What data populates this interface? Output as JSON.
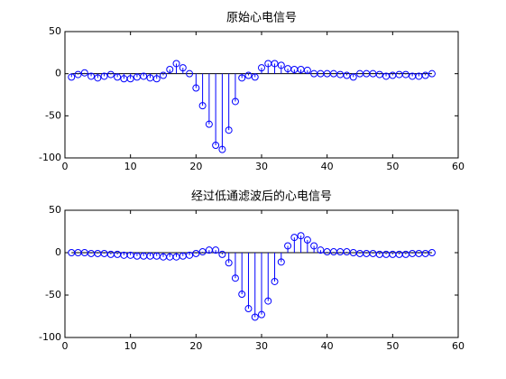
{
  "chart_data": [
    {
      "type": "stem",
      "title": "原始心电信号",
      "color": "#0000ff",
      "x": [
        1,
        2,
        3,
        4,
        5,
        6,
        7,
        8,
        9,
        10,
        11,
        12,
        13,
        14,
        15,
        16,
        17,
        18,
        19,
        20,
        21,
        22,
        23,
        24,
        25,
        26,
        27,
        28,
        29,
        30,
        31,
        32,
        33,
        34,
        35,
        36,
        37,
        38,
        39,
        40,
        41,
        42,
        43,
        44,
        45,
        46,
        47,
        48,
        49,
        50,
        51,
        52,
        53,
        54,
        55,
        56
      ],
      "values": [
        -4,
        -1,
        1,
        -3,
        -5,
        -3,
        -1,
        -4,
        -6,
        -6,
        -4,
        -3,
        -5,
        -6,
        -2,
        5,
        12,
        7,
        0,
        -17,
        -38,
        -60,
        -85,
        -90,
        -67,
        -33,
        -5,
        -2,
        -4,
        7,
        12,
        12,
        10,
        6,
        5,
        5,
        4,
        0,
        0,
        0,
        0,
        -1,
        -2,
        -4,
        0,
        0,
        0,
        -1,
        -3,
        -2,
        -1,
        -1,
        -3,
        -3,
        -2,
        0
      ],
      "xlim": [
        0,
        60
      ],
      "xticks": [
        0,
        10,
        20,
        30,
        40,
        50,
        60
      ],
      "ylim": [
        -100,
        50
      ],
      "yticks": [
        -100,
        -50,
        0,
        50
      ]
    },
    {
      "type": "stem",
      "title": "经过低通滤波后的心电信号",
      "color": "#0000ff",
      "x": [
        1,
        2,
        3,
        4,
        5,
        6,
        7,
        8,
        9,
        10,
        11,
        12,
        13,
        14,
        15,
        16,
        17,
        18,
        19,
        20,
        21,
        22,
        23,
        24,
        25,
        26,
        27,
        28,
        29,
        30,
        31,
        32,
        33,
        34,
        35,
        36,
        37,
        38,
        39,
        40,
        41,
        42,
        43,
        44,
        45,
        46,
        47,
        48,
        49,
        50,
        51,
        52,
        53,
        54,
        55,
        56
      ],
      "values": [
        0,
        0,
        0,
        -1,
        -1,
        -1,
        -2,
        -2,
        -3,
        -3,
        -4,
        -4,
        -4,
        -4,
        -5,
        -5,
        -5,
        -4,
        -3,
        -1,
        1,
        3,
        3,
        -2,
        -12,
        -30,
        -49,
        -66,
        -76,
        -73,
        -57,
        -34,
        -11,
        8,
        18,
        20,
        15,
        8,
        3,
        1,
        1,
        1,
        1,
        0,
        -1,
        -1,
        -1,
        -2,
        -2,
        -2,
        -2,
        -2,
        -1,
        -1,
        -1,
        0
      ],
      "xlim": [
        0,
        60
      ],
      "xticks": [
        0,
        10,
        20,
        30,
        40,
        50,
        60
      ],
      "ylim": [
        -100,
        50
      ],
      "yticks": [
        -100,
        -50,
        0,
        50
      ]
    }
  ]
}
